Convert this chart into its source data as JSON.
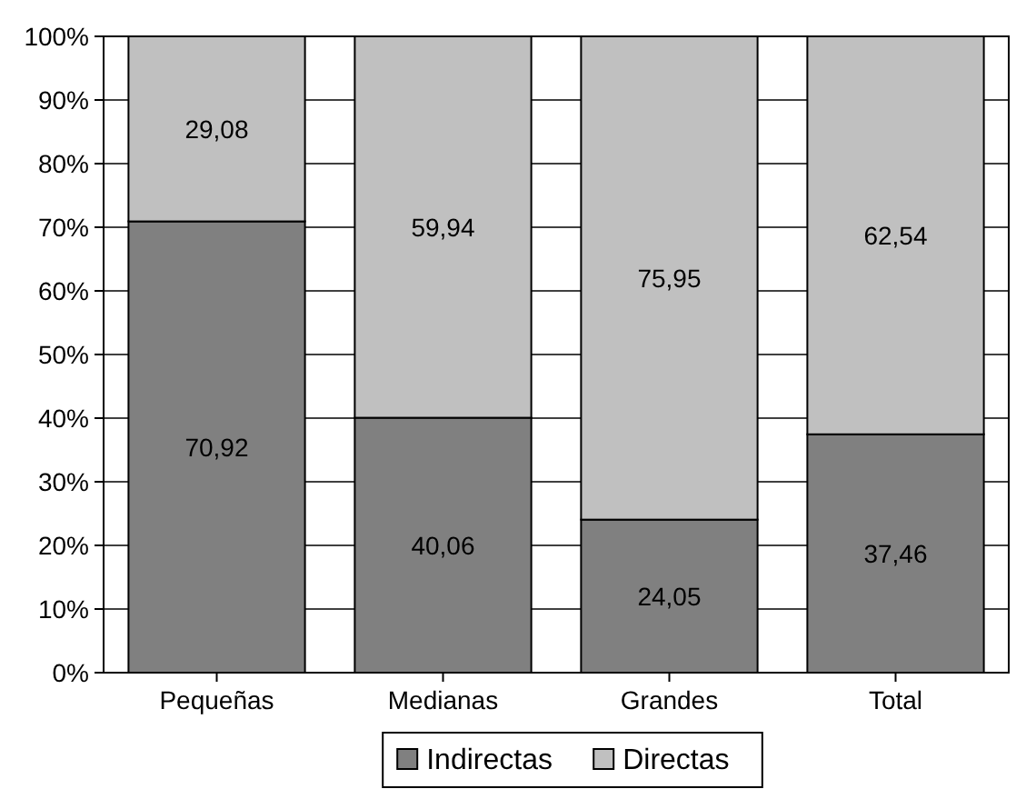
{
  "chart_data": {
    "type": "bar",
    "stacked": true,
    "categories": [
      "Pequeñas",
      "Medianas",
      "Grandes",
      "Total"
    ],
    "series": [
      {
        "name": "Indirectas",
        "color": "#808080",
        "values": [
          70.92,
          40.06,
          24.05,
          37.46
        ],
        "value_labels": [
          "70,92",
          "40,06",
          "24,05",
          "37,46"
        ]
      },
      {
        "name": "Directas",
        "color": "#c0c0c0",
        "values": [
          29.08,
          59.94,
          75.95,
          62.54
        ],
        "value_labels": [
          "29,08",
          "59,94",
          "75,95",
          "62,54"
        ]
      }
    ],
    "ylim": [
      0,
      100
    ],
    "yticks": [
      {
        "value": 0,
        "label": "0%"
      },
      {
        "value": 10,
        "label": "10%"
      },
      {
        "value": 20,
        "label": "20%"
      },
      {
        "value": 30,
        "label": "30%"
      },
      {
        "value": 40,
        "label": "40%"
      },
      {
        "value": 50,
        "label": "50%"
      },
      {
        "value": 60,
        "label": "60%"
      },
      {
        "value": 70,
        "label": "70%"
      },
      {
        "value": 80,
        "label": "80%"
      },
      {
        "value": 90,
        "label": "90%"
      },
      {
        "value": 100,
        "label": "100%"
      }
    ],
    "grid": "y",
    "legend": "bottom"
  }
}
